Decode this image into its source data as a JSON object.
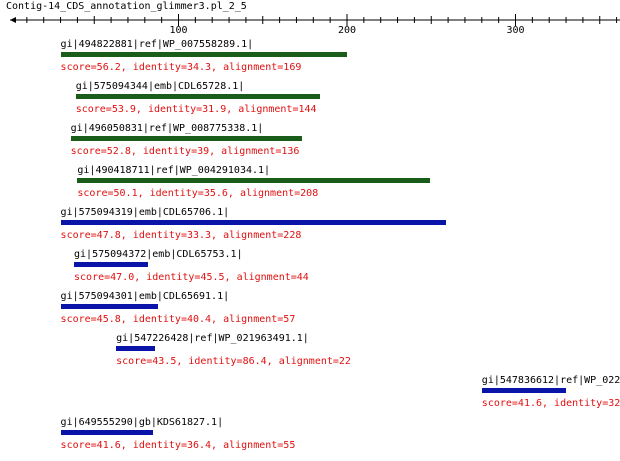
{
  "track": {
    "title": "Contig-14_CDS_annotation_glimmer3.pl_2_5"
  },
  "axis": {
    "ticks": [
      {
        "label": "100",
        "value": 100
      },
      {
        "label": "200",
        "value": 200
      },
      {
        "label": "300",
        "value": 300
      }
    ]
  },
  "colors": {
    "green_bar": "#1a5c1a",
    "blue_bar": "#0a14a8",
    "stats_text": "#e01010"
  },
  "hits": [
    {
      "name": "gi|494822881|ref|WP_007558289.1|",
      "stats": "score=56.2, identity=34.3, alignment=169",
      "start": 30,
      "end": 200,
      "color": "green"
    },
    {
      "name": "gi|575094344|emb|CDL65728.1|",
      "stats": "score=53.9, identity=31.9, alignment=144",
      "start": 39,
      "end": 184,
      "color": "green"
    },
    {
      "name": "gi|496050831|ref|WP_008775338.1|",
      "stats": "score=52.8, identity=39, alignment=136",
      "start": 36,
      "end": 173,
      "color": "green"
    },
    {
      "name": "gi|490418711|ref|WP_004291034.1|",
      "stats": "score=50.1, identity=35.6, alignment=208",
      "start": 40,
      "end": 249,
      "color": "green"
    },
    {
      "name": "gi|575094319|emb|CDL65706.1|",
      "stats": "score=47.8, identity=33.3, alignment=228",
      "start": 30,
      "end": 259,
      "color": "blue"
    },
    {
      "name": "gi|575094372|emb|CDL65753.1|",
      "stats": "score=47.0, identity=45.5, alignment=44",
      "start": 38,
      "end": 82,
      "color": "blue"
    },
    {
      "name": "gi|575094301|emb|CDL65691.1|",
      "stats": "score=45.8, identity=40.4, alignment=57",
      "start": 30,
      "end": 88,
      "color": "blue"
    },
    {
      "name": "gi|547226428|ref|WP_021963491.1|",
      "stats": "score=43.5, identity=86.4, alignment=22",
      "start": 63,
      "end": 86,
      "color": "blue"
    },
    {
      "name": "gi|547836612|ref|WP_022",
      "stats": "score=41.6, identity=32",
      "start": 280,
      "end": 330,
      "color": "blue"
    },
    {
      "name": "gi|649555290|gb|KDS61827.1|",
      "stats": "score=41.6, identity=36.4, alignment=55",
      "start": 30,
      "end": 85,
      "color": "blue"
    }
  ]
}
